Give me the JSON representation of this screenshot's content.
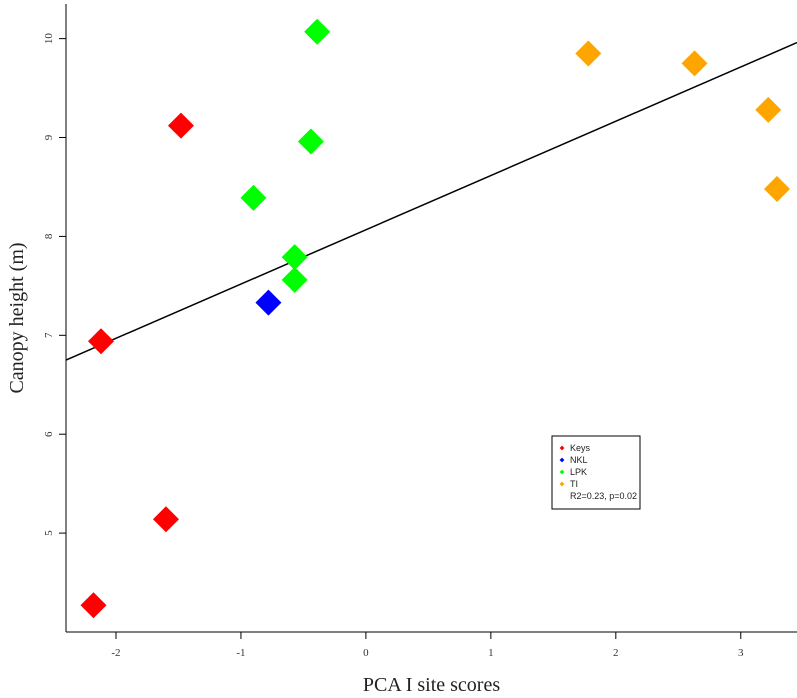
{
  "chart_data": {
    "type": "scatter",
    "xlabel": "PCA I site scores",
    "ylabel": "Canopy height (m)",
    "xlim": [
      -2.4,
      3.45
    ],
    "ylim": [
      4.0,
      10.35
    ],
    "x_ticks": [
      -2,
      -1,
      0,
      1,
      2,
      3
    ],
    "y_ticks": [
      5,
      6,
      7,
      8,
      9,
      10
    ],
    "grid": false,
    "legend_position": "bottom-right",
    "series": [
      {
        "name": "Keys",
        "color": "#ff0000",
        "points": [
          {
            "x": -1.48,
            "y": 9.12
          },
          {
            "x": -2.12,
            "y": 6.94
          },
          {
            "x": -1.6,
            "y": 5.14
          },
          {
            "x": -2.18,
            "y": 4.27
          }
        ]
      },
      {
        "name": "NKL",
        "color": "#0000ff",
        "points": [
          {
            "x": -0.78,
            "y": 7.33
          }
        ]
      },
      {
        "name": "LPK",
        "color": "#00ff00",
        "points": [
          {
            "x": -0.39,
            "y": 10.07
          },
          {
            "x": -0.44,
            "y": 8.96
          },
          {
            "x": -0.9,
            "y": 8.39
          },
          {
            "x": -0.57,
            "y": 7.79
          },
          {
            "x": -0.57,
            "y": 7.56
          }
        ]
      },
      {
        "name": "TI",
        "color": "#ffa500",
        "points": [
          {
            "x": 1.78,
            "y": 9.85
          },
          {
            "x": 2.63,
            "y": 9.75
          },
          {
            "x": 3.22,
            "y": 9.28
          },
          {
            "x": 3.29,
            "y": 8.48
          }
        ]
      }
    ],
    "fit_line": {
      "x": [
        -2.4,
        3.45
      ],
      "y": [
        6.75,
        9.96
      ],
      "color": "#000000"
    },
    "legend_note": "R2=0.23, p=0.02"
  }
}
